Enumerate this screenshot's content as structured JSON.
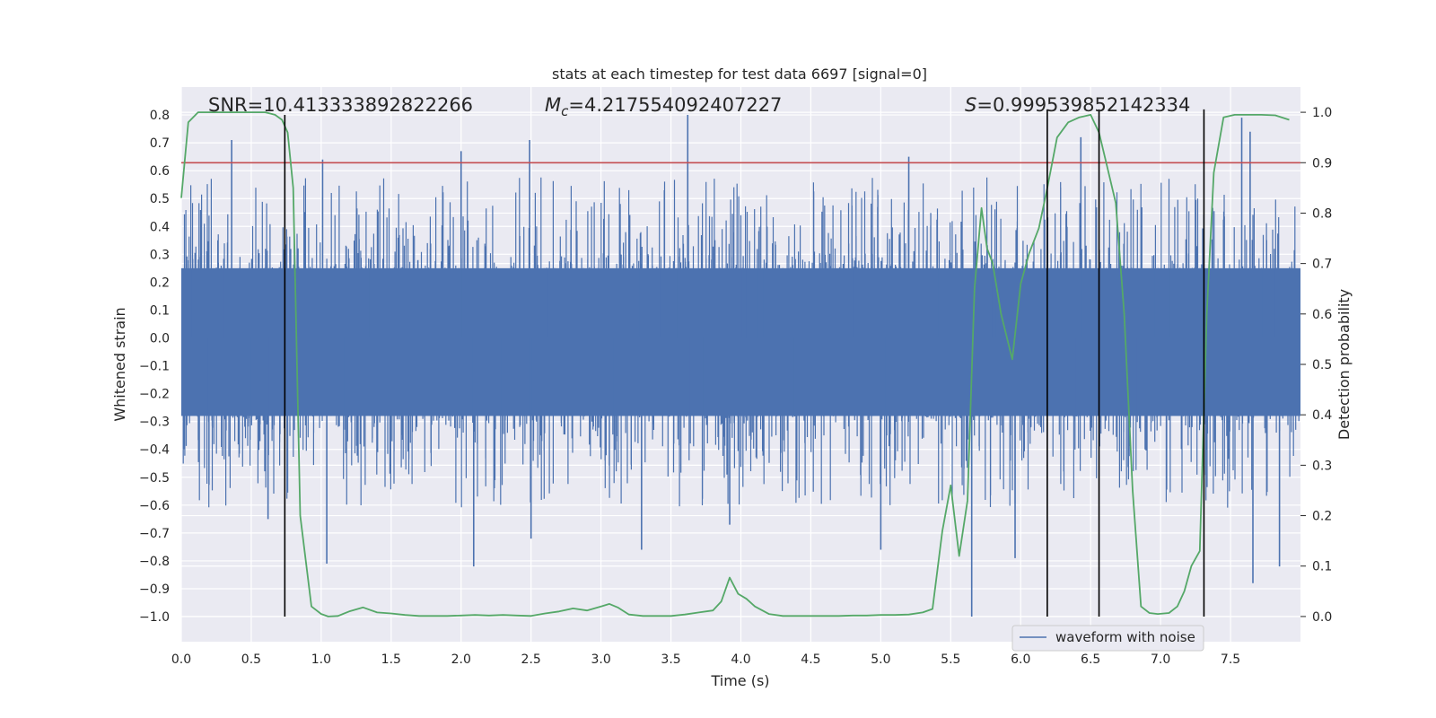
{
  "chart_data": {
    "type": "line",
    "title": "stats at each timestep for test data 6697 [signal=0]",
    "xlabel": "Time (s)",
    "ylabel": "Whitened strain",
    "y2label": "Detection probability",
    "xlim": [
      0.0,
      8.0
    ],
    "ylim": [
      -1.09,
      0.9
    ],
    "y2lim": [
      -0.05,
      1.05
    ],
    "xticks": [
      0.0,
      0.5,
      1.0,
      1.5,
      2.0,
      2.5,
      3.0,
      3.5,
      4.0,
      4.5,
      5.0,
      5.5,
      6.0,
      6.5,
      7.0,
      7.5
    ],
    "xtick_labels": [
      "0.0",
      "0.5",
      "1.0",
      "1.5",
      "2.0",
      "2.5",
      "3.0",
      "3.5",
      "4.0",
      "4.5",
      "5.0",
      "5.5",
      "6.0",
      "6.5",
      "7.0",
      "7.5"
    ],
    "yticks": [
      0.8,
      0.7,
      0.6,
      0.5,
      0.4,
      0.3,
      0.2,
      0.1,
      0.0,
      -0.1,
      -0.2,
      -0.3,
      -0.4,
      -0.5,
      -0.6,
      -0.7,
      -0.8,
      -0.9,
      -1.0
    ],
    "ytick_labels": [
      "0.8",
      "0.7",
      "0.6",
      "0.5",
      "0.4",
      "0.3",
      "0.2",
      "0.1",
      "0.0",
      "−0.1",
      "−0.2",
      "−0.3",
      "−0.4",
      "−0.5",
      "−0.6",
      "−0.7",
      "−0.8",
      "−0.9",
      "−1.0"
    ],
    "y2ticks": [
      1.0,
      0.9,
      0.8,
      0.7,
      0.6,
      0.5,
      0.4,
      0.3,
      0.2,
      0.1,
      0.0
    ],
    "y2tick_labels": [
      "1.0",
      "0.9",
      "0.8",
      "0.7",
      "0.6",
      "0.5",
      "0.4",
      "0.3",
      "0.2",
      "0.1",
      "0.0"
    ],
    "annotations": {
      "snr": "SNR=10.413333892822266",
      "mc_symbol": "M",
      "mc_sub": "c",
      "mc_value": "=4.217554092407227",
      "s_symbol": "S",
      "s_value": "=0.999539852142334"
    },
    "legend": {
      "label": "waveform with noise",
      "position": "lower-right"
    },
    "threshold_line": {
      "y2": 0.9,
      "color": "#c44e52"
    },
    "vertical_markers": [
      {
        "x": 0.74,
        "ymin": -1.0,
        "ymax": 0.8
      },
      {
        "x": 6.19,
        "ymin": -1.0,
        "ymax": 0.82
      },
      {
        "x": 6.56,
        "ymin": -1.0,
        "ymax": 0.82
      },
      {
        "x": 7.31,
        "ymin": -1.0,
        "ymax": 0.82
      }
    ],
    "waveform": {
      "name": "waveform with noise",
      "color": "#4c72b0",
      "t_end": 8.0,
      "core_low": -0.28,
      "core_high": 0.25,
      "n_spikes_up": 650,
      "n_spikes_down": 650,
      "peaks": [
        {
          "x": 0.36,
          "y": 0.71
        },
        {
          "x": 2.0,
          "y": 0.67
        },
        {
          "x": 2.49,
          "y": 0.71
        },
        {
          "x": 3.62,
          "y": 0.8
        },
        {
          "x": 6.43,
          "y": 0.72
        },
        {
          "x": 7.58,
          "y": 0.79
        },
        {
          "x": 1.01,
          "y": 0.64
        },
        {
          "x": 5.2,
          "y": 0.65
        },
        {
          "x": 7.64,
          "y": 0.74
        },
        {
          "x": 0.62,
          "y": -0.65
        },
        {
          "x": 1.04,
          "y": -0.81
        },
        {
          "x": 2.09,
          "y": -0.82
        },
        {
          "x": 3.29,
          "y": -0.76
        },
        {
          "x": 3.92,
          "y": -0.67
        },
        {
          "x": 5.0,
          "y": -0.76
        },
        {
          "x": 5.65,
          "y": -1.0
        },
        {
          "x": 5.96,
          "y": -0.79
        },
        {
          "x": 7.66,
          "y": -0.88
        },
        {
          "x": 7.85,
          "y": -0.82
        },
        {
          "x": 2.5,
          "y": -0.72
        }
      ]
    },
    "series": [
      {
        "name": "detection probability",
        "axis": "right",
        "color": "#55a868",
        "x": [
          0.0,
          0.05,
          0.12,
          0.2,
          0.3,
          0.4,
          0.5,
          0.6,
          0.67,
          0.72,
          0.76,
          0.8,
          0.85,
          0.93,
          1.0,
          1.05,
          1.12,
          1.2,
          1.3,
          1.4,
          1.5,
          1.6,
          1.7,
          1.8,
          1.9,
          2.0,
          2.1,
          2.2,
          2.3,
          2.4,
          2.5,
          2.6,
          2.7,
          2.8,
          2.9,
          3.0,
          3.06,
          3.12,
          3.2,
          3.3,
          3.4,
          3.5,
          3.6,
          3.7,
          3.8,
          3.86,
          3.92,
          3.98,
          4.04,
          4.1,
          4.2,
          4.3,
          4.4,
          4.5,
          4.6,
          4.7,
          4.8,
          4.9,
          5.0,
          5.1,
          5.2,
          5.3,
          5.37,
          5.44,
          5.5,
          5.56,
          5.62,
          5.67,
          5.72,
          5.76,
          5.8,
          5.86,
          5.94,
          6.0,
          6.06,
          6.13,
          6.19,
          6.26,
          6.34,
          6.42,
          6.5,
          6.56,
          6.62,
          6.68,
          6.74,
          6.8,
          6.86,
          6.92,
          6.98,
          7.06,
          7.12,
          7.17,
          7.22,
          7.28,
          7.33,
          7.38,
          7.45,
          7.53,
          7.62,
          7.72,
          7.82,
          7.92
        ],
        "values": [
          0.83,
          0.98,
          1.0,
          1.0,
          1.0,
          1.0,
          1.0,
          1.0,
          0.995,
          0.985,
          0.96,
          0.85,
          0.2,
          0.02,
          0.005,
          0.0,
          0.001,
          0.01,
          0.018,
          0.008,
          0.006,
          0.003,
          0.001,
          0.001,
          0.001,
          0.002,
          0.003,
          0.002,
          0.003,
          0.002,
          0.001,
          0.006,
          0.01,
          0.016,
          0.012,
          0.02,
          0.025,
          0.018,
          0.004,
          0.001,
          0.001,
          0.001,
          0.004,
          0.008,
          0.012,
          0.03,
          0.077,
          0.045,
          0.035,
          0.02,
          0.005,
          0.001,
          0.001,
          0.001,
          0.001,
          0.001,
          0.002,
          0.002,
          0.003,
          0.003,
          0.004,
          0.008,
          0.015,
          0.17,
          0.26,
          0.12,
          0.23,
          0.65,
          0.81,
          0.73,
          0.7,
          0.6,
          0.51,
          0.66,
          0.72,
          0.77,
          0.85,
          0.95,
          0.98,
          0.99,
          0.995,
          0.96,
          0.89,
          0.82,
          0.6,
          0.25,
          0.02,
          0.007,
          0.005,
          0.007,
          0.02,
          0.05,
          0.1,
          0.13,
          0.6,
          0.88,
          0.99,
          0.995,
          0.995,
          0.995,
          0.994,
          0.985
        ]
      }
    ]
  }
}
